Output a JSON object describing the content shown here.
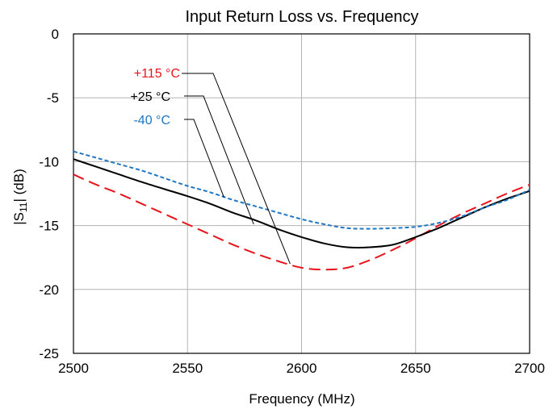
{
  "chart_data": {
    "type": "line",
    "title": "Input Return Loss vs. Frequency",
    "xlabel": "Frequency (MHz)",
    "ylabel_main": "|S",
    "ylabel_sub": "11",
    "ylabel_tail": "| (dB)",
    "xlim": [
      2500,
      2700
    ],
    "ylim": [
      -25,
      0
    ],
    "xticks": [
      2500,
      2550,
      2600,
      2650,
      2700
    ],
    "yticks": [
      0,
      -5,
      -10,
      -15,
      -20,
      -25
    ],
    "grid": true,
    "series": [
      {
        "name": "+115 °C",
        "color": "#e8141c",
        "dash": "long-dash",
        "x": [
          2500,
          2510,
          2520,
          2530,
          2540,
          2550,
          2560,
          2570,
          2580,
          2590,
          2600,
          2610,
          2620,
          2630,
          2640,
          2650,
          2660,
          2670,
          2680,
          2690,
          2700
        ],
        "y": [
          -11.0,
          -11.8,
          -12.5,
          -13.3,
          -14.1,
          -14.9,
          -15.7,
          -16.5,
          -17.2,
          -17.8,
          -18.3,
          -18.45,
          -18.3,
          -17.7,
          -16.9,
          -16.0,
          -15.0,
          -14.1,
          -13.3,
          -12.5,
          -11.8
        ]
      },
      {
        "name": "+25 °C",
        "color": "#000000",
        "dash": "solid",
        "x": [
          2500,
          2510,
          2520,
          2530,
          2540,
          2550,
          2560,
          2570,
          2580,
          2590,
          2600,
          2610,
          2620,
          2630,
          2640,
          2650,
          2660,
          2670,
          2680,
          2690,
          2700
        ],
        "y": [
          -9.8,
          -10.4,
          -11.0,
          -11.6,
          -12.15,
          -12.7,
          -13.3,
          -14.0,
          -14.6,
          -15.3,
          -15.9,
          -16.4,
          -16.7,
          -16.7,
          -16.5,
          -15.9,
          -15.2,
          -14.4,
          -13.6,
          -12.9,
          -12.3
        ]
      },
      {
        "name": "-40 °C",
        "color": "#1f77c4",
        "dash": "short-dash",
        "x": [
          2500,
          2510,
          2520,
          2530,
          2540,
          2550,
          2560,
          2570,
          2580,
          2590,
          2600,
          2610,
          2620,
          2630,
          2640,
          2650,
          2660,
          2670,
          2680,
          2690,
          2700
        ],
        "y": [
          -9.2,
          -9.7,
          -10.2,
          -10.7,
          -11.3,
          -11.9,
          -12.4,
          -13.0,
          -13.5,
          -14.0,
          -14.5,
          -14.9,
          -15.2,
          -15.25,
          -15.2,
          -15.1,
          -14.8,
          -14.3,
          -13.6,
          -13.0,
          -12.2
        ]
      }
    ],
    "callouts": [
      {
        "label": "+115 °C",
        "color": "#e8141c",
        "point_x": 2595,
        "point_y": -18.0
      },
      {
        "label": "+25 °C",
        "color": "#000000",
        "point_x": 2579,
        "point_y": -14.9
      },
      {
        "label": "-40 °C",
        "color": "#1f77c4",
        "point_x": 2566,
        "point_y": -12.8
      }
    ]
  }
}
